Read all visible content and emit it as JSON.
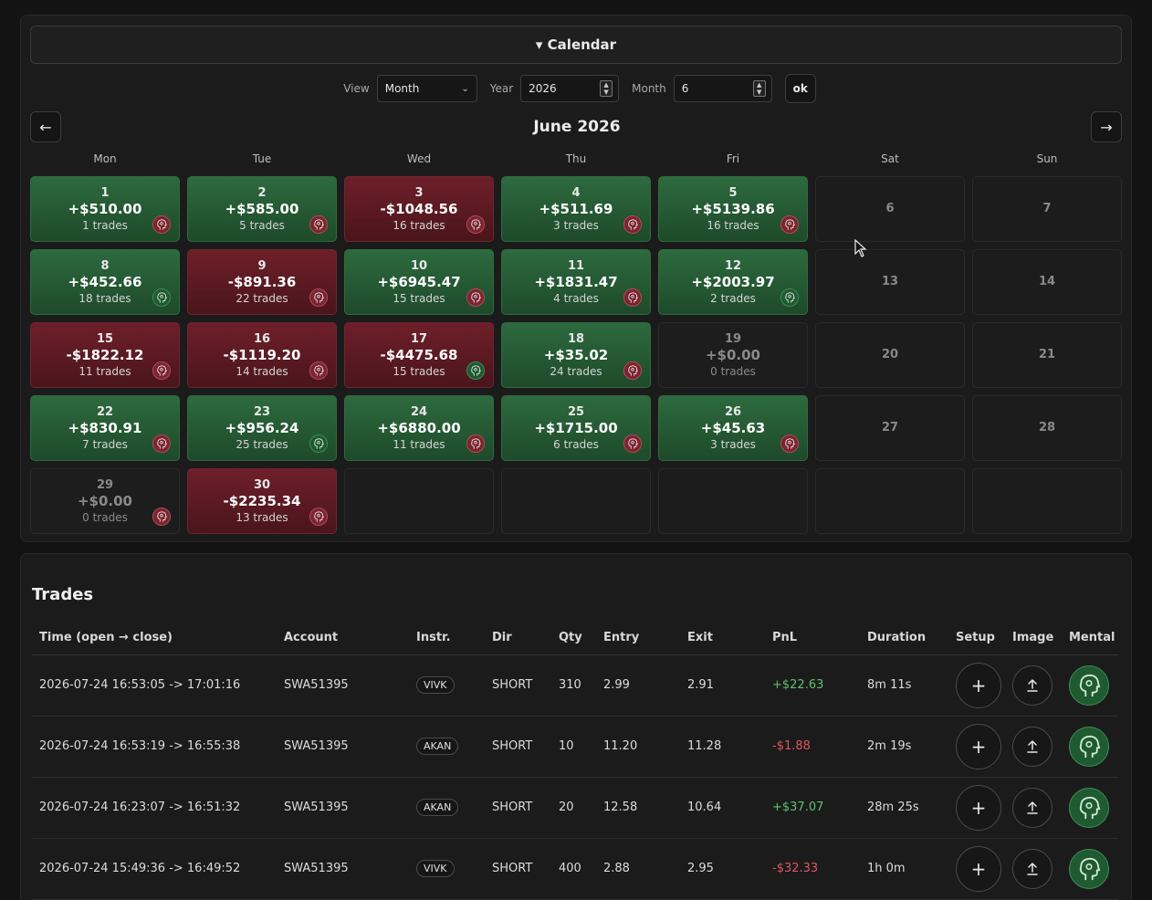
{
  "calendar": {
    "header": "▾ Calendar",
    "view_label": "View",
    "view_value": "Month",
    "year_label": "Year",
    "year_value": "2026",
    "month_label": "Month",
    "month_value": "6",
    "ok_label": "ok",
    "prev_label": "←",
    "next_label": "→",
    "title": "June 2026",
    "weekdays": [
      "Mon",
      "Tue",
      "Wed",
      "Thu",
      "Fri",
      "Sat",
      "Sun"
    ],
    "cells": [
      {
        "day": "1",
        "pnl": "+$510.00",
        "trades": "1 trades",
        "kind": "pos",
        "mood": "red"
      },
      {
        "day": "2",
        "pnl": "+$585.00",
        "trades": "5 trades",
        "kind": "pos",
        "mood": "red"
      },
      {
        "day": "3",
        "pnl": "-$1048.56",
        "trades": "16 trades",
        "kind": "neg",
        "mood": "red"
      },
      {
        "day": "4",
        "pnl": "+$511.69",
        "trades": "3 trades",
        "kind": "pos",
        "mood": "red"
      },
      {
        "day": "5",
        "pnl": "+$5139.86",
        "trades": "16 trades",
        "kind": "pos",
        "mood": "red"
      },
      {
        "day": "6",
        "kind": "weekend"
      },
      {
        "day": "7",
        "kind": "weekend"
      },
      {
        "day": "8",
        "pnl": "+$452.66",
        "trades": "18 trades",
        "kind": "pos",
        "mood": "green"
      },
      {
        "day": "9",
        "pnl": "-$891.36",
        "trades": "22 trades",
        "kind": "neg",
        "mood": "red"
      },
      {
        "day": "10",
        "pnl": "+$6945.47",
        "trades": "15 trades",
        "kind": "pos",
        "mood": "red"
      },
      {
        "day": "11",
        "pnl": "+$1831.47",
        "trades": "4 trades",
        "kind": "pos",
        "mood": "red"
      },
      {
        "day": "12",
        "pnl": "+$2003.97",
        "trades": "2 trades",
        "kind": "pos",
        "mood": "green"
      },
      {
        "day": "13",
        "kind": "weekend"
      },
      {
        "day": "14",
        "kind": "weekend"
      },
      {
        "day": "15",
        "pnl": "-$1822.12",
        "trades": "11 trades",
        "kind": "neg",
        "mood": "red"
      },
      {
        "day": "16",
        "pnl": "-$1119.20",
        "trades": "14 trades",
        "kind": "neg",
        "mood": "red"
      },
      {
        "day": "17",
        "pnl": "-$4475.68",
        "trades": "15 trades",
        "kind": "neg",
        "mood": "green"
      },
      {
        "day": "18",
        "pnl": "+$35.02",
        "trades": "24 trades",
        "kind": "pos",
        "mood": "red"
      },
      {
        "day": "19",
        "pnl": "+$0.00",
        "trades": "0 trades",
        "kind": "zero"
      },
      {
        "day": "20",
        "kind": "weekend"
      },
      {
        "day": "21",
        "kind": "weekend"
      },
      {
        "day": "22",
        "pnl": "+$830.91",
        "trades": "7 trades",
        "kind": "pos",
        "mood": "red"
      },
      {
        "day": "23",
        "pnl": "+$956.24",
        "trades": "25 trades",
        "kind": "pos",
        "mood": "green"
      },
      {
        "day": "24",
        "pnl": "+$6880.00",
        "trades": "11 trades",
        "kind": "pos",
        "mood": "red"
      },
      {
        "day": "25",
        "pnl": "+$1715.00",
        "trades": "6 trades",
        "kind": "pos",
        "mood": "red"
      },
      {
        "day": "26",
        "pnl": "+$45.63",
        "trades": "3 trades",
        "kind": "pos",
        "mood": "red"
      },
      {
        "day": "27",
        "kind": "weekend"
      },
      {
        "day": "28",
        "kind": "weekend"
      },
      {
        "day": "29",
        "pnl": "+$0.00",
        "trades": "0 trades",
        "kind": "zero",
        "mood": "red"
      },
      {
        "day": "30",
        "pnl": "-$2235.34",
        "trades": "13 trades",
        "kind": "neg",
        "mood": "red"
      },
      {
        "kind": "empty"
      },
      {
        "kind": "empty"
      },
      {
        "kind": "empty"
      },
      {
        "kind": "empty"
      },
      {
        "kind": "empty"
      }
    ]
  },
  "trades": {
    "title": "Trades",
    "columns": [
      "Time (open → close)",
      "Account",
      "Instr.",
      "Dir",
      "Qty",
      "Entry",
      "Exit",
      "PnL",
      "Duration",
      "Setup",
      "Image",
      "Mental"
    ],
    "rows": [
      {
        "time": "2026-07-24 16:53:05 -> 17:01:16",
        "account": "SWA51395",
        "instr": "VIVK",
        "dir": "SHORT",
        "qty": "310",
        "entry": "2.99",
        "exit": "2.91",
        "pnl": "+$22.63",
        "pnl_sign": "pos",
        "duration": "8m 11s"
      },
      {
        "time": "2026-07-24 16:53:19 -> 16:55:38",
        "account": "SWA51395",
        "instr": "AKAN",
        "dir": "SHORT",
        "qty": "10",
        "entry": "11.20",
        "exit": "11.28",
        "pnl": "-$1.88",
        "pnl_sign": "neg",
        "duration": "2m 19s"
      },
      {
        "time": "2026-07-24 16:23:07 -> 16:51:32",
        "account": "SWA51395",
        "instr": "AKAN",
        "dir": "SHORT",
        "qty": "20",
        "entry": "12.58",
        "exit": "10.64",
        "pnl": "+$37.07",
        "pnl_sign": "pos",
        "duration": "28m 25s"
      },
      {
        "time": "2026-07-24 15:49:36 -> 16:49:52",
        "account": "SWA51395",
        "instr": "VIVK",
        "dir": "SHORT",
        "qty": "400",
        "entry": "2.88",
        "exit": "2.95",
        "pnl": "-$32.33",
        "pnl_sign": "neg",
        "duration": "1h 0m"
      }
    ],
    "setup_icon": "plus-icon",
    "image_icon": "upload-icon",
    "mental_icon": "head-icon"
  },
  "colors": {
    "positive": "#2d6a3e",
    "negative": "#6e1f29",
    "pnl_positive_text": "#5cc26f",
    "pnl_negative_text": "#e05560"
  }
}
